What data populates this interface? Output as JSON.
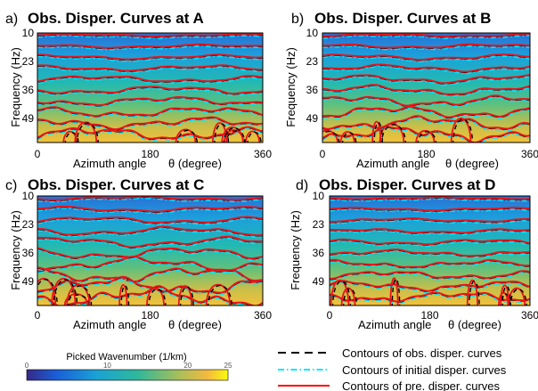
{
  "chart_data": {
    "type": "heatmap",
    "ylabel": "Frequency (Hz)",
    "xlabel_text": "Azimuth angle",
    "xlabel_symbol": "θ (degree)",
    "xlim": [
      0,
      360
    ],
    "ylim": [
      10,
      60
    ],
    "x_ticks": [
      "0",
      "180",
      "360"
    ],
    "y_ticks": [
      "10",
      "23",
      "36",
      "49"
    ],
    "y_tick_values": [
      10,
      23,
      36,
      49
    ],
    "contour_frequencies": [
      11,
      16,
      21,
      26,
      31,
      36,
      41,
      46,
      51,
      56
    ],
    "panels": [
      {
        "label": "a)",
        "title": "Obs. Disper. Curves at A",
        "roughness": 1.0,
        "tail": 0.9,
        "seed": 1
      },
      {
        "label": "b)",
        "title": "Obs. Disper. Curves at B",
        "roughness": 1.2,
        "tail": 0.7,
        "seed": 2
      },
      {
        "label": "c)",
        "title": "Obs. Disper. Curves at C",
        "roughness": 1.5,
        "tail": 1.0,
        "seed": 3
      },
      {
        "label": "d)",
        "title": "Obs. Disper. Curves at D",
        "roughness": 0.8,
        "tail": 0.8,
        "seed": 4
      }
    ],
    "colorbar": {
      "title": "Picked Wavenumber (1/km)",
      "range": [
        0,
        25
      ],
      "ticks": [
        "0",
        "10",
        "20",
        "25"
      ],
      "tick_values": [
        0,
        10,
        20,
        25
      ]
    },
    "legend": [
      {
        "label": "Contours of obs. disper. curves",
        "style": "dashed",
        "color": "#000000"
      },
      {
        "label": "Contours of initial disper. curves",
        "style": "dashdot",
        "color": "#00e5ff"
      },
      {
        "label": "Contours of pre. disper. curves",
        "style": "solid",
        "color": "#ff0000"
      }
    ]
  }
}
